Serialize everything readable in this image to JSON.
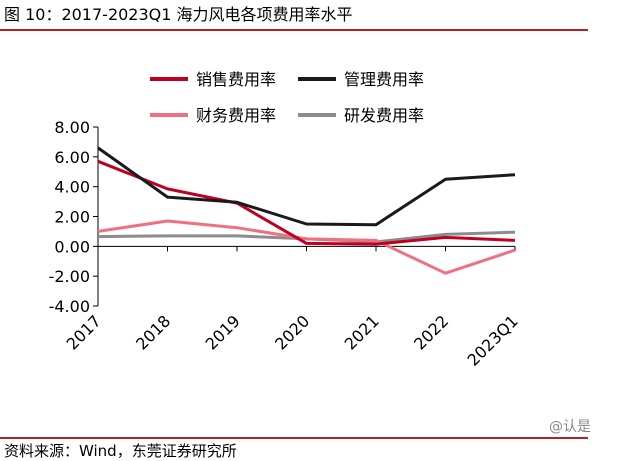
{
  "figure": {
    "title": "图 10：2017-2023Q1 海力风电各项费用率水平",
    "source": "资料来源：Wind，东莞证券研究所",
    "watermark": "@认是"
  },
  "chart_data": {
    "type": "line",
    "title": "",
    "xlabel": "",
    "ylabel": "",
    "categories": [
      "2017",
      "2018",
      "2019",
      "2020",
      "2021",
      "2022",
      "2023Q1"
    ],
    "ylim": [
      -4,
      8
    ],
    "yticks": [
      "8.00",
      "6.00",
      "4.00",
      "2.00",
      "0.00",
      "-2.00",
      "-4.00"
    ],
    "ytick_values": [
      8,
      6,
      4,
      2,
      0,
      -2,
      -4
    ],
    "grid": false,
    "legend_position": "top",
    "series": [
      {
        "name": "销售费用率",
        "color": "#c00020",
        "values": [
          5.7,
          3.85,
          2.9,
          0.2,
          0.15,
          0.6,
          0.4
        ]
      },
      {
        "name": "管理费用率",
        "color": "#1a1a1a",
        "values": [
          6.6,
          3.3,
          2.95,
          1.5,
          1.45,
          4.5,
          4.8
        ]
      },
      {
        "name": "财务费用率",
        "color": "#f07080",
        "values": [
          1.0,
          1.7,
          1.25,
          0.5,
          0.4,
          -1.8,
          -0.25
        ]
      },
      {
        "name": "研发费用率",
        "color": "#8c8c8c",
        "values": [
          0.65,
          0.7,
          0.7,
          0.5,
          0.3,
          0.8,
          0.95
        ]
      }
    ]
  }
}
